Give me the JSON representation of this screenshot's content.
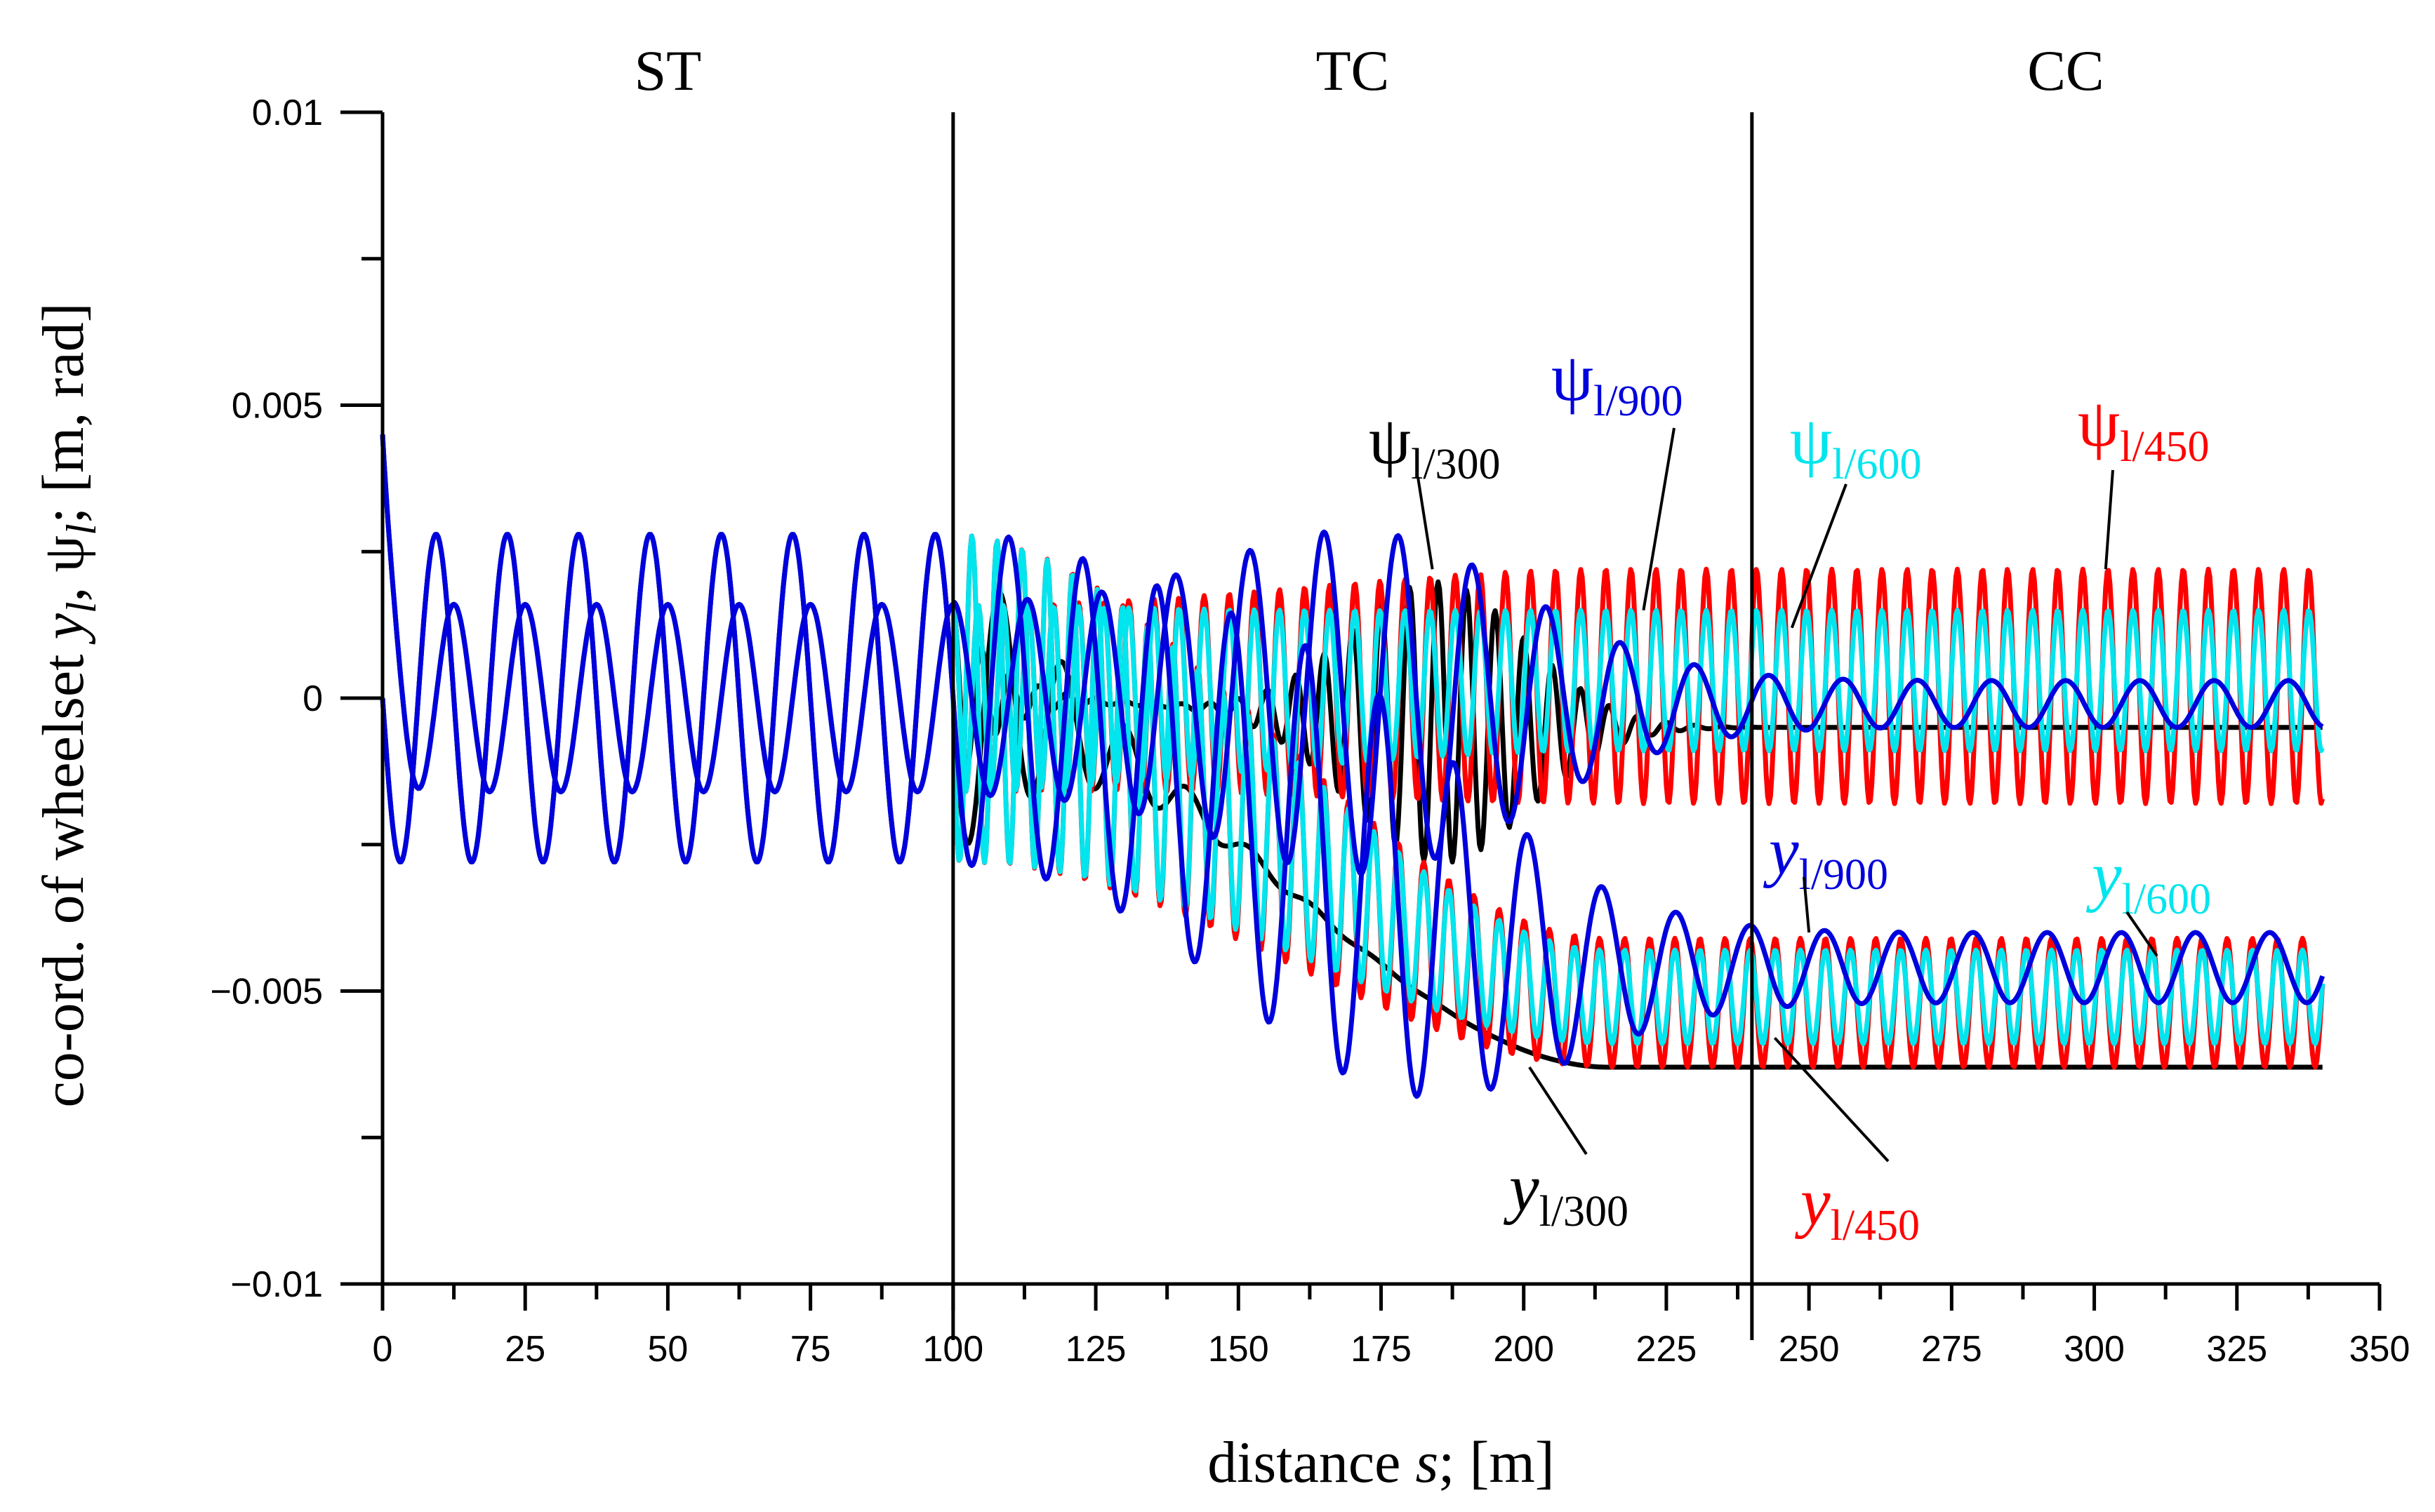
{
  "chart_data": {
    "type": "line",
    "title": "",
    "xlabel": {
      "pre": "distance ",
      "var": "s",
      "post": "; [m]"
    },
    "ylabel": {
      "pre": "co-ord. of wheelset ",
      "y": "y",
      "sep": ", ",
      "psi": "ψ",
      "post": "; [m, rad]",
      "sub": "l"
    },
    "xlim": [
      0,
      350
    ],
    "ylim": [
      -0.01,
      0.01
    ],
    "x_ticks": [
      0,
      25,
      50,
      75,
      100,
      125,
      150,
      175,
      200,
      225,
      250,
      275,
      300,
      325,
      350
    ],
    "x_tick_labels": [
      "0",
      "25",
      "50",
      "75",
      "100",
      "125",
      "150",
      "175",
      "200",
      "225",
      "250",
      "275",
      "300",
      "325",
      "350"
    ],
    "y_ticks": [
      0.01,
      0.005,
      0,
      -0.005,
      -0.01
    ],
    "y_tick_labels": [
      "0.01",
      "0.005",
      "0",
      "−0.005",
      "−0.01"
    ],
    "sections": [
      {
        "label": "ST",
        "start": 0,
        "end": 100
      },
      {
        "label": "TC",
        "start": 100,
        "end": 240
      },
      {
        "label": "CC",
        "start": 240,
        "end": 350
      }
    ],
    "boundaries": [
      100,
      240
    ],
    "x_end": 340,
    "series": [
      {
        "name": "y l/300",
        "var": "y",
        "sub": "l/300",
        "kind": "y",
        "color": "#000000",
        "final_mean": -0.0063,
        "final_amp": 0.0,
        "wavelength": 11,
        "decay": 22,
        "transition": [
          100,
          240
        ]
      },
      {
        "name": "y l/450",
        "var": "y",
        "sub": "l/450",
        "kind": "y",
        "color": "#ff0000",
        "final_mean": -0.0052,
        "final_amp": 0.0011,
        "wavelength": 4.4,
        "decay": 1000,
        "transition": [
          100,
          240
        ]
      },
      {
        "name": "y l/600",
        "var": "y",
        "sub": "l/600",
        "kind": "y",
        "color": "#00e5ee",
        "final_mean": -0.0051,
        "final_amp": 0.0008,
        "wavelength": 4.4,
        "decay": 1000,
        "transition": [
          100,
          240
        ]
      },
      {
        "name": "y l/900",
        "var": "y",
        "sub": "l/900",
        "kind": "y",
        "color": "#0000dd",
        "final_mean": -0.0046,
        "final_amp": 0.0006,
        "wavelength": 13,
        "decay": 1000,
        "transition": [
          100,
          240
        ]
      },
      {
        "name": "ψ l/300",
        "var": "ψ",
        "sub": "l/300",
        "kind": "psi",
        "color": "#000000",
        "final_mean": -0.0005,
        "final_amp": 0.0,
        "wavelength": 5,
        "decay": 8,
        "transition": [
          100,
          240
        ]
      },
      {
        "name": "ψ l/450",
        "var": "ψ",
        "sub": "l/450",
        "kind": "psi",
        "color": "#ff0000",
        "final_mean": 0.0002,
        "final_amp": 0.002,
        "wavelength": 4.4,
        "decay": 1000,
        "transition": [
          100,
          240
        ]
      },
      {
        "name": "ψ l/600",
        "var": "ψ",
        "sub": "l/600",
        "kind": "psi",
        "color": "#00e5ee",
        "final_mean": 0.0003,
        "final_amp": 0.0012,
        "wavelength": 4.4,
        "decay": 1000,
        "transition": [
          100,
          240
        ]
      },
      {
        "name": "ψ l/900",
        "var": "ψ",
        "sub": "l/900",
        "kind": "psi",
        "color": "#0000dd",
        "final_mean": -0.0001,
        "final_amp": 0.0004,
        "wavelength": 13,
        "decay": 1000,
        "transition": [
          100,
          240
        ]
      }
    ],
    "straight_track": {
      "y_amplitude": 0.0028,
      "psi_amplitude": 0.0016,
      "wavelength": 12.5,
      "initial_psi": 0.0045
    },
    "annotations": [
      {
        "var": "ψ",
        "sub": "l/900",
        "color": "#0000dd",
        "points_to": [
          221,
          0.0015
        ]
      },
      {
        "var": "ψ",
        "sub": "l/300",
        "color": "#000000",
        "points_to": [
          184,
          0.0022
        ]
      },
      {
        "var": "ψ",
        "sub": "l/600",
        "color": "#00e5ee",
        "points_to": [
          247,
          0.0012
        ]
      },
      {
        "var": "ψ",
        "sub": "l/450",
        "color": "#ff0000",
        "points_to": [
          302,
          0.0022
        ]
      },
      {
        "var": "y",
        "sub": "l/900",
        "color": "#0000dd",
        "points_to": [
          250,
          -0.004
        ]
      },
      {
        "var": "y",
        "sub": "l/600",
        "color": "#00e5ee",
        "points_to": [
          311,
          -0.0044
        ]
      },
      {
        "var": "y",
        "sub": "l/300",
        "color": "#000000",
        "points_to": [
          201,
          -0.0063
        ]
      },
      {
        "var": "y",
        "sub": "l/450",
        "color": "#ff0000",
        "points_to": [
          244,
          -0.0058
        ]
      }
    ]
  }
}
